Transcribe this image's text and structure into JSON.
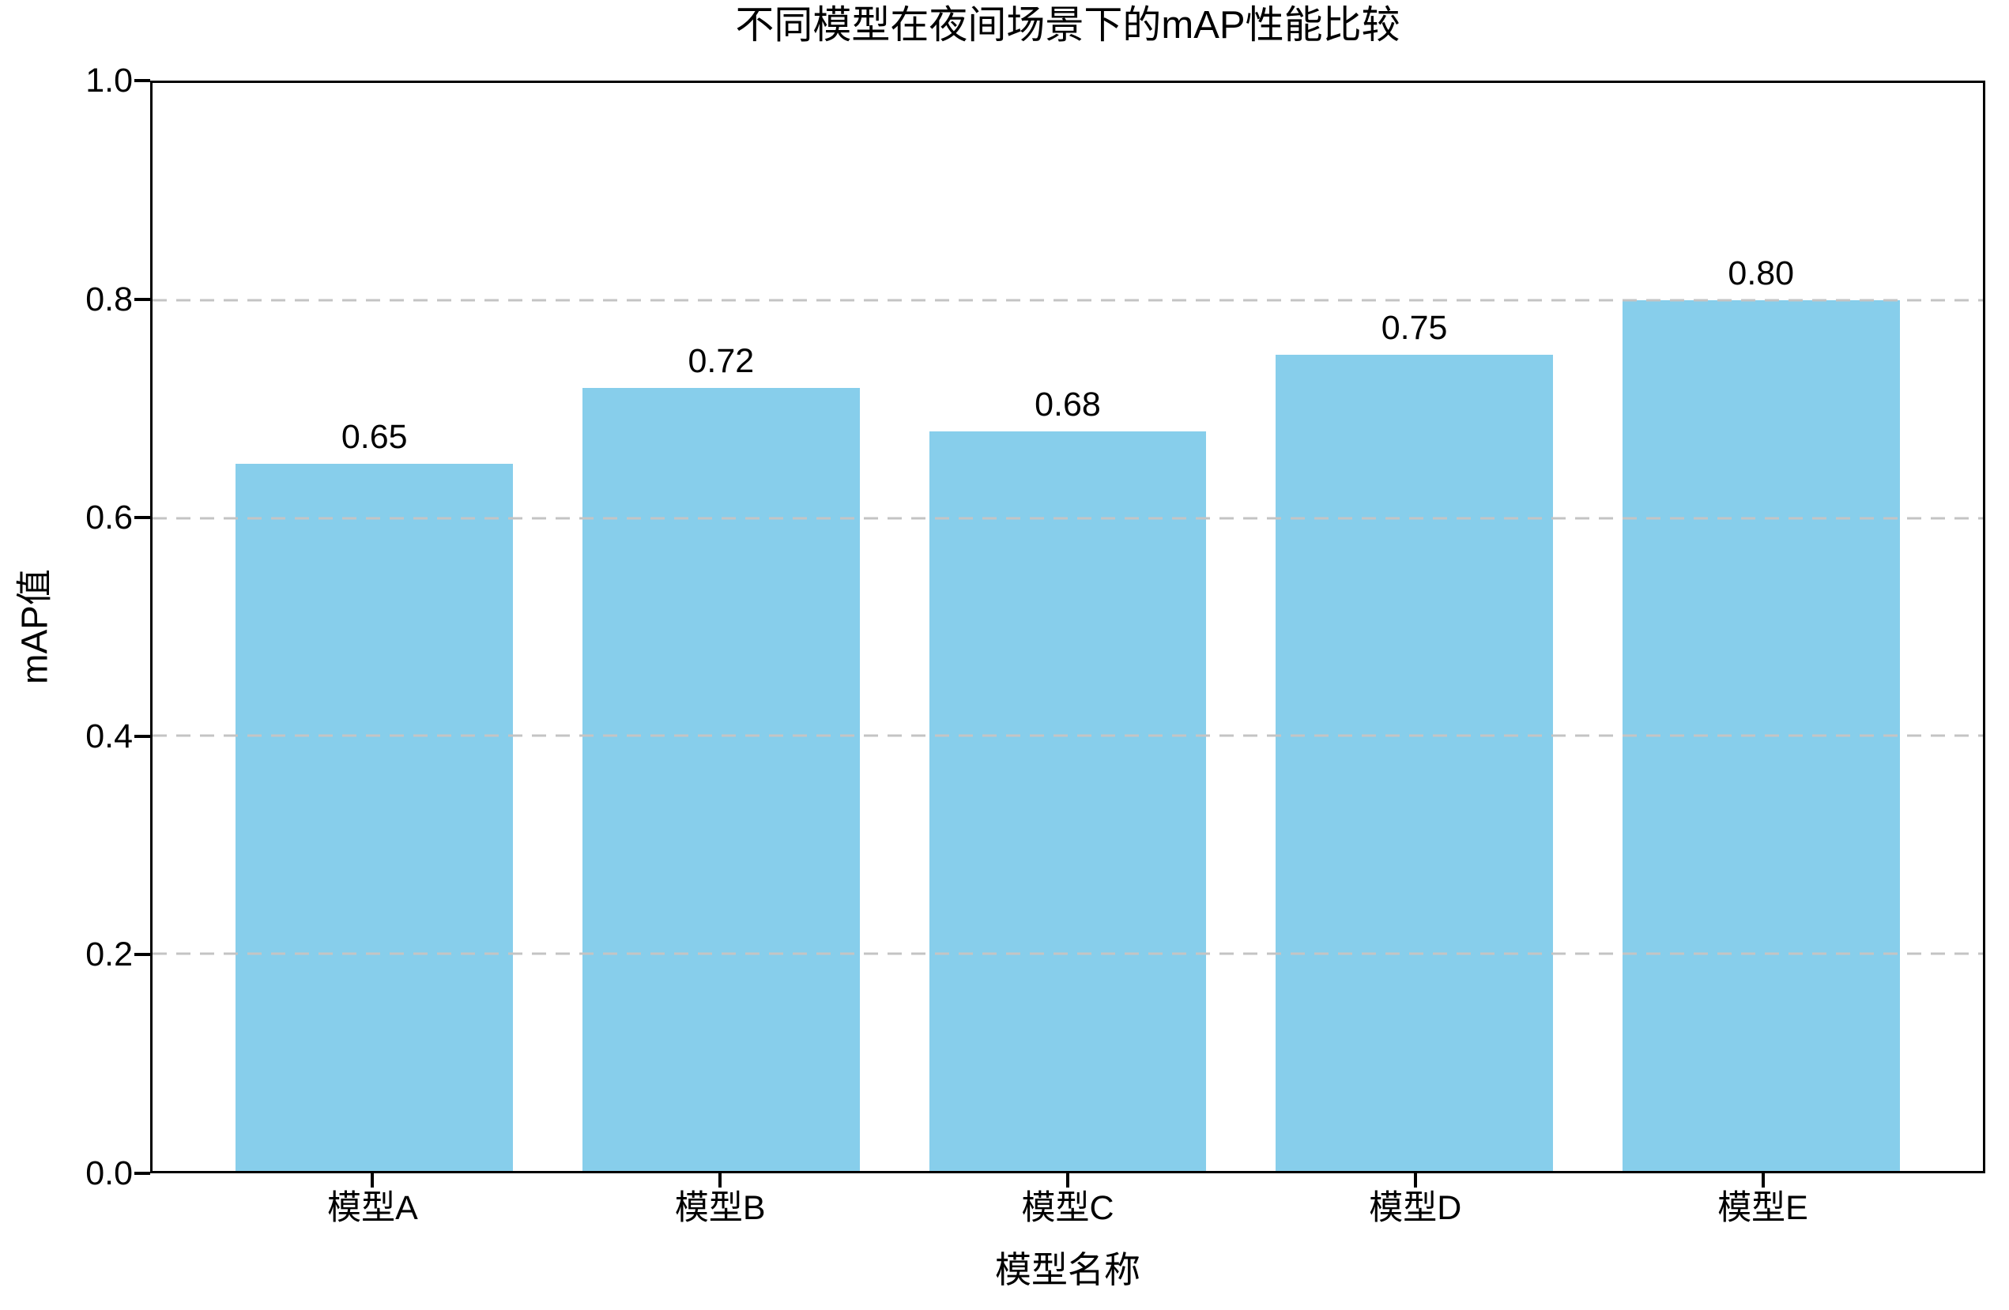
{
  "chart_data": {
    "type": "bar",
    "title": "不同模型在夜间场景下的mAP性能比较",
    "xlabel": "模型名称",
    "ylabel": "mAP值",
    "categories": [
      "模型A",
      "模型B",
      "模型C",
      "模型D",
      "模型E"
    ],
    "values": [
      0.65,
      0.72,
      0.68,
      0.75,
      0.8
    ],
    "bar_labels": [
      "0.65",
      "0.72",
      "0.68",
      "0.75",
      "0.80"
    ],
    "ylim": [
      0.0,
      1.0
    ],
    "yticks": [
      0.0,
      0.2,
      0.4,
      0.6,
      0.8,
      1.0
    ],
    "ytick_labels": [
      "0.0",
      "0.2",
      "0.4",
      "0.6",
      "0.8",
      "1.0"
    ],
    "bar_color": "#87CEEB",
    "grid_color": "#c4c4c4",
    "grid_style": "dashed-horizontal",
    "legend_position": "none"
  }
}
